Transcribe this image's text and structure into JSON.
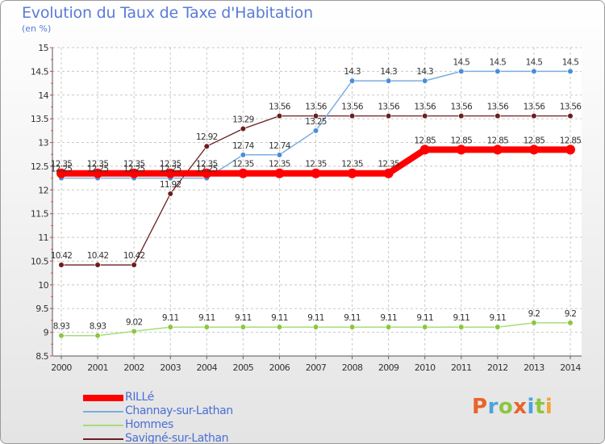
{
  "title": "Evolution du Taux de Taxe d'Habitation",
  "unit_label": "(en %)",
  "logo": {
    "text": "Proxiti",
    "colors": [
      "#e8642a",
      "#4aa3df",
      "#8cc63f",
      "#e8642a",
      "#4aa3df",
      "#8cc63f",
      "#f2a33a"
    ]
  },
  "chart_data": {
    "type": "line",
    "title": "Evolution du Taux de Taxe d'Habitation",
    "ylabel": "(en %)",
    "ylim": [
      8.5,
      15
    ],
    "yticks": [
      "8.5",
      "9",
      "9.5",
      "10",
      "10.5",
      "11",
      "11.5",
      "12",
      "12.5",
      "13",
      "13.5",
      "14",
      "14.5",
      "15"
    ],
    "x": [
      "2000",
      "2001",
      "2002",
      "2003",
      "2004",
      "2005",
      "2006",
      "2007",
      "2008",
      "2009",
      "2010",
      "2011",
      "2012",
      "2013",
      "2014"
    ],
    "grid": true,
    "legend_position": "bottom-left",
    "series": [
      {
        "name": "Savigné-sur-Lathan",
        "color": "#6b1e1e",
        "width": 1.3,
        "marker": "#6b1e1e",
        "values": [
          10.42,
          10.42,
          10.42,
          11.92,
          12.92,
          13.29,
          13.56,
          13.56,
          13.56,
          13.56,
          13.56,
          13.56,
          13.56,
          13.56,
          13.56
        ],
        "labels": [
          "10.42",
          "10.42",
          "10.42",
          "11.92",
          "12.92",
          "13.29",
          "13.56",
          "13.56",
          "13.56",
          "13.56",
          "13.56",
          "13.56",
          "13.56",
          "13.56",
          "13.56"
        ]
      },
      {
        "name": "Hommes",
        "color": "#a6dd7a",
        "width": 1.5,
        "marker": "#8cc63f",
        "values": [
          8.93,
          8.93,
          9.02,
          9.11,
          9.11,
          9.11,
          9.11,
          9.11,
          9.11,
          9.11,
          9.11,
          9.11,
          9.11,
          9.2,
          9.2
        ],
        "labels": [
          "8.93",
          "8.93",
          "9.02",
          "9.11",
          "9.11",
          "9.11",
          "9.11",
          "9.11",
          "9.11",
          "9.11",
          "9.11",
          "9.11",
          "9.11",
          "9.2",
          "9.2"
        ]
      },
      {
        "name": "Channay-sur-Lathan",
        "color": "#7aaee0",
        "width": 1.5,
        "marker": "#4a8ed6",
        "values": [
          12.25,
          12.25,
          12.25,
          12.25,
          12.25,
          12.74,
          12.74,
          13.25,
          14.3,
          14.3,
          14.3,
          14.5,
          14.5,
          14.5,
          14.5
        ],
        "labels": [
          "12.25",
          "12.25",
          "12.25",
          "12.25",
          "12.25",
          "12.74",
          "12.74",
          "13.25",
          "14.3",
          "14.3",
          "14.3",
          "14.5",
          "14.5",
          "14.5",
          "14.5"
        ]
      },
      {
        "name": "RILLé",
        "color": "#ff0000",
        "width": 8,
        "marker": "#ff0000",
        "values": [
          12.35,
          12.35,
          12.35,
          12.35,
          12.35,
          12.35,
          12.35,
          12.35,
          12.35,
          12.35,
          12.85,
          12.85,
          12.85,
          12.85,
          12.85
        ],
        "labels": [
          "12.35",
          "12.35",
          "12.35",
          "12.35",
          "12.35",
          "12.35",
          "12.35",
          "12.35",
          "12.35",
          "12.35",
          "12.85",
          "12.85",
          "12.85",
          "12.85",
          "12.85"
        ]
      }
    ]
  },
  "legend": [
    {
      "label": "RILLé",
      "color": "#ff0000",
      "thickness": 8
    },
    {
      "label": "Channay-sur-Lathan",
      "color": "#7aaee0",
      "thickness": 2
    },
    {
      "label": "Hommes",
      "color": "#a6dd7a",
      "thickness": 2
    },
    {
      "label": "Savigné-sur-Lathan",
      "color": "#6b1e1e",
      "thickness": 2
    }
  ]
}
